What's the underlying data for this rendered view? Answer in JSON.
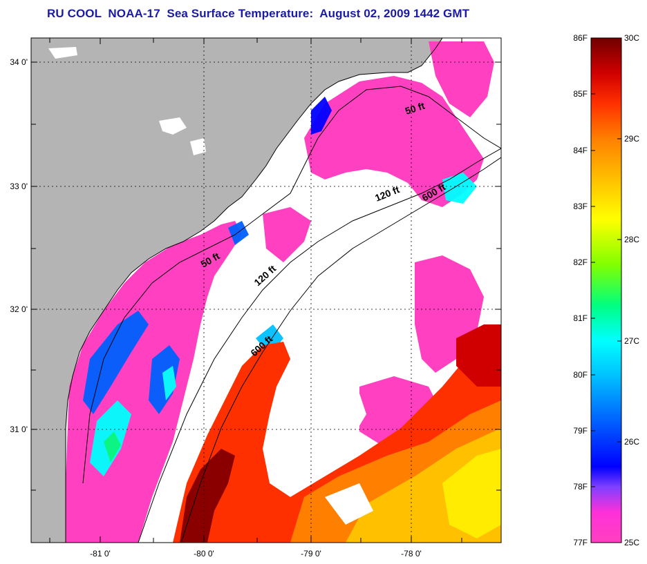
{
  "title": "RU COOL  NOAA-17  Sea Surface Temperature:  August 02, 2009 1442 GMT",
  "map": {
    "lon_ticks": [
      "-81 0'",
      "-80 0'",
      "-79 0'",
      "-78 0'"
    ],
    "lat_ticks": [
      "34 0'",
      "33 0'",
      "32 0'",
      "31 0'"
    ],
    "isobath_labels": [
      "50 ft",
      "120 ft",
      "600 ft",
      "50 ft",
      "120 ft",
      "600 ft"
    ],
    "colors": {
      "land": "#b4b4b4",
      "cloud": "#ffffff",
      "coast": "#000000"
    }
  },
  "colorbar": {
    "fahrenheit": [
      "86F",
      "85F",
      "84F",
      "83F",
      "82F",
      "81F",
      "80F",
      "79F",
      "78F",
      "77F"
    ],
    "celsius": [
      "30C",
      "29C",
      "28C",
      "27C",
      "26C",
      "25C"
    ],
    "colors": [
      "#ff40c0",
      "#8040ff",
      "#0000ff",
      "#0080ff",
      "#00ffff",
      "#00ff80",
      "#80ff00",
      "#ffff00",
      "#ffc000",
      "#ff8000",
      "#ff3000",
      "#c00000",
      "#700000"
    ]
  }
}
